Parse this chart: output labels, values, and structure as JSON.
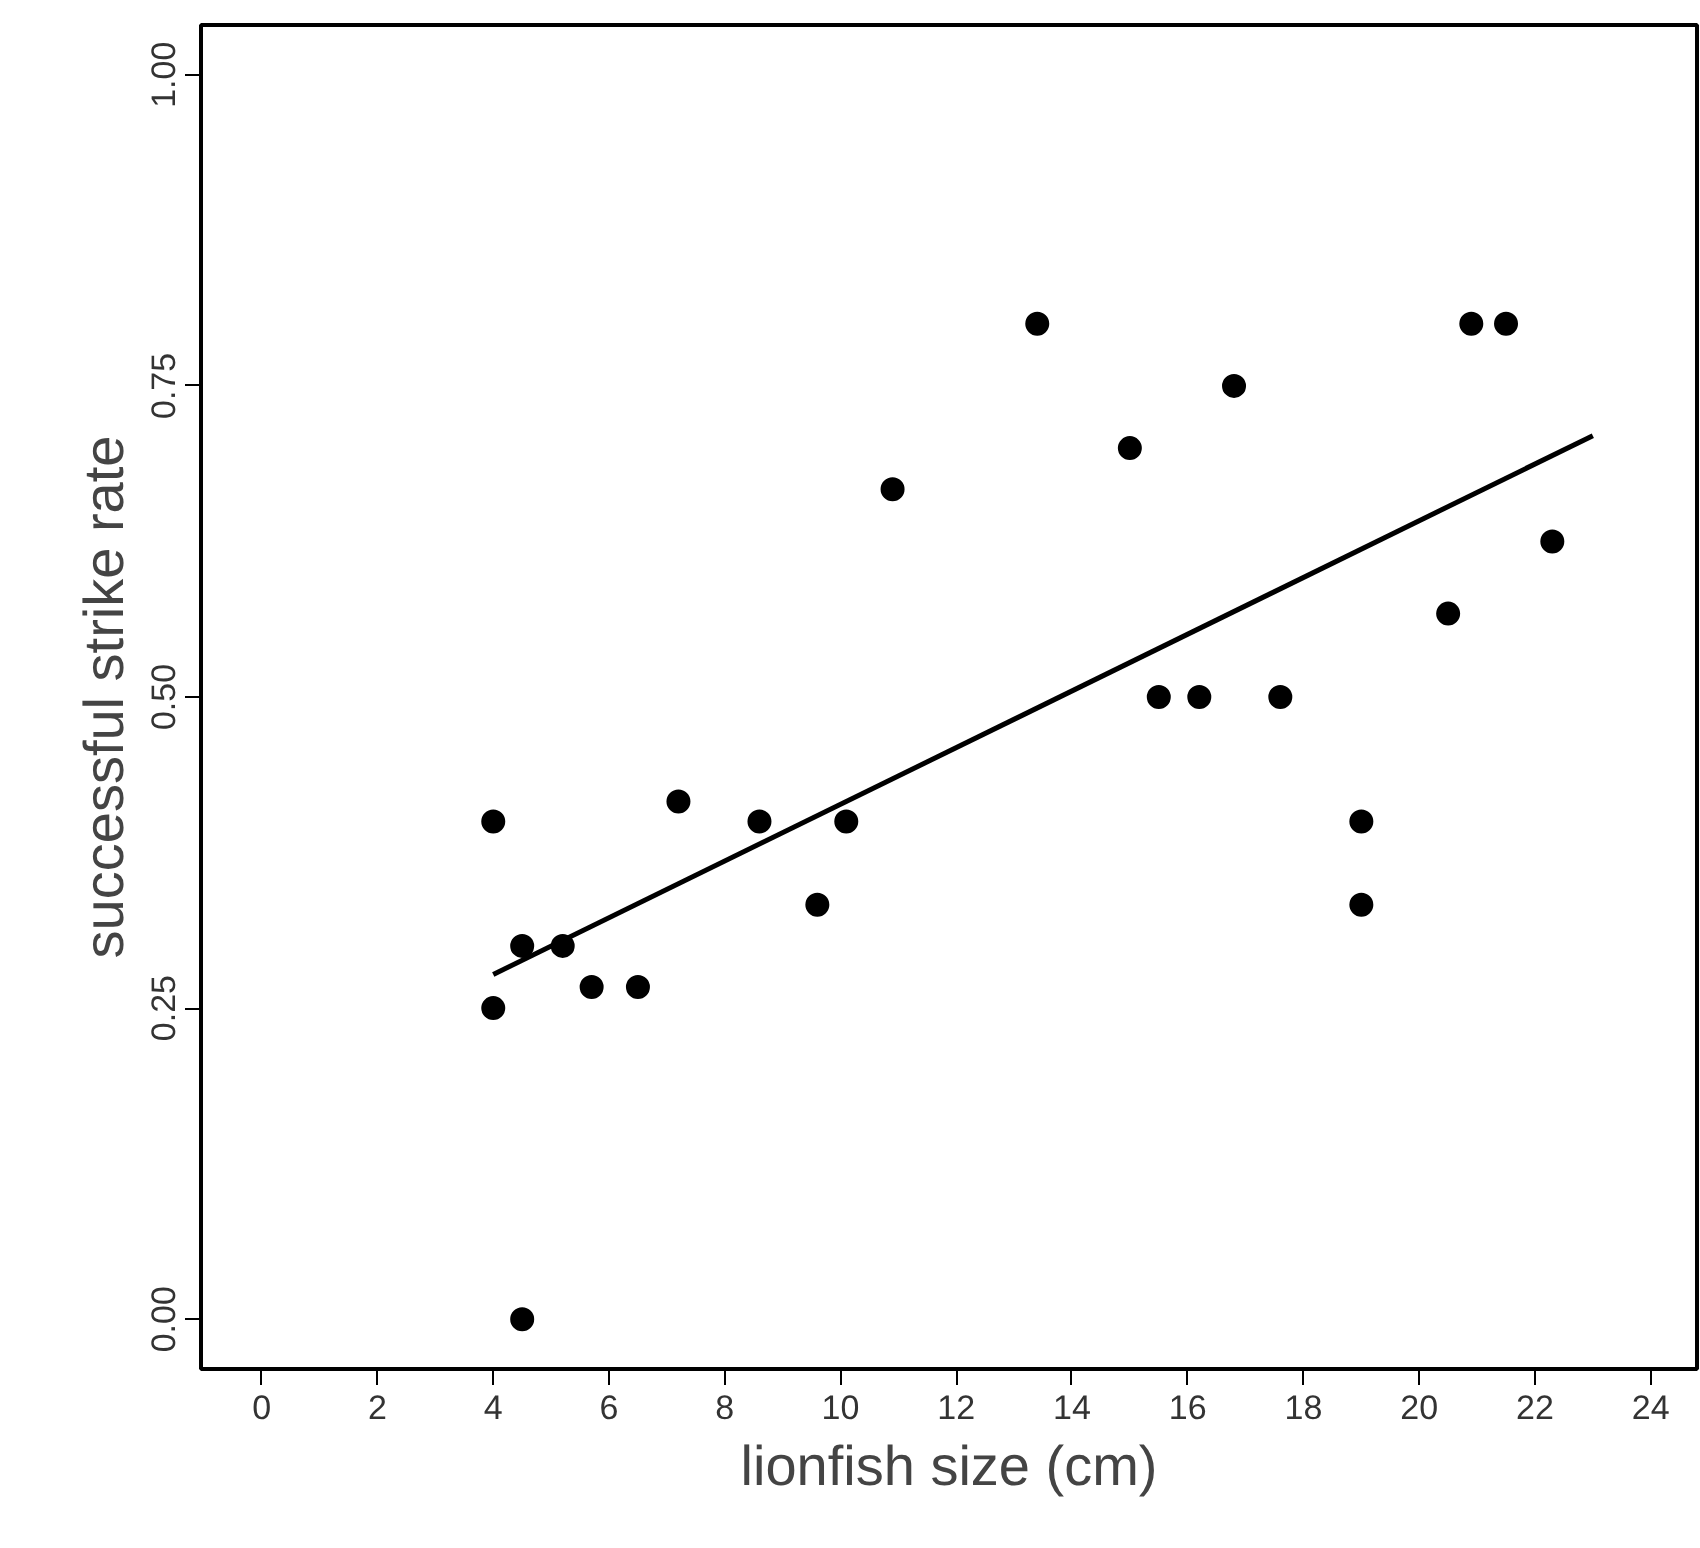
{
  "chart_data": {
    "type": "scatter",
    "xlabel": "lionfish size (cm)",
    "ylabel": "successful strike rate",
    "series": [
      {
        "color": "#000000",
        "marker": "circle",
        "x": [
          4.0,
          4.0,
          4.5,
          4.5,
          5.2,
          5.7,
          6.5,
          7.2,
          8.6,
          9.6,
          10.1,
          10.9,
          13.4,
          15.0,
          15.5,
          16.2,
          16.8,
          17.6,
          19.0,
          19.0,
          20.5,
          20.9,
          21.5,
          22.3
        ],
        "values": [
          0.4,
          0.25,
          0.3,
          0.0,
          0.3,
          0.267,
          0.267,
          0.416,
          0.4,
          0.333,
          0.4,
          0.667,
          0.8,
          0.7,
          0.5,
          0.5,
          0.75,
          0.5,
          0.4,
          0.333,
          0.567,
          0.8,
          0.8,
          0.625
        ]
      },
      {
        "type": "line",
        "color": "#000000",
        "x": [
          4.0,
          23.0
        ],
        "values": [
          0.277,
          0.71
        ]
      }
    ],
    "xlim": [
      -1.05,
      24.8
    ],
    "ylim": [
      -0.04,
      1.04
    ],
    "xticks": [
      0,
      2,
      4,
      6,
      8,
      10,
      12,
      14,
      16,
      18,
      20,
      22,
      24
    ],
    "yticks": [
      {
        "value": 0,
        "label": "0.00"
      },
      {
        "value": 0.25,
        "label": "0.25"
      },
      {
        "value": 0.5,
        "label": "0.50"
      },
      {
        "value": 0.75,
        "label": "0.75"
      },
      {
        "value": 1,
        "label": "1.00"
      }
    ],
    "grid": false,
    "line_style": "solid"
  }
}
